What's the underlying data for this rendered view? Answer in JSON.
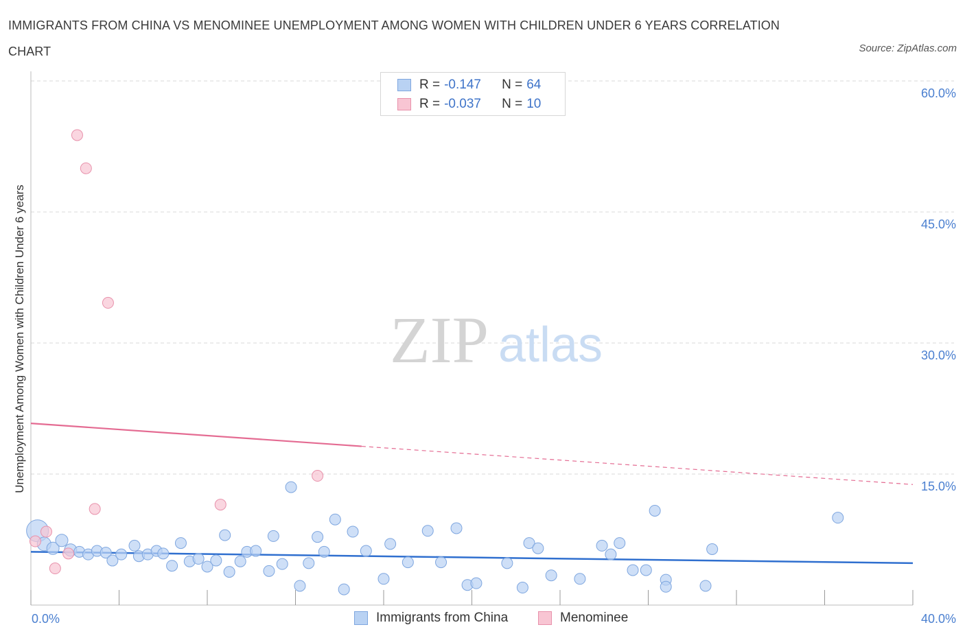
{
  "title": "IMMIGRANTS FROM CHINA VS MENOMINEE UNEMPLOYMENT AMONG WOMEN WITH CHILDREN UNDER 6 YEARS CORRELATION CHART",
  "source": "Source: ZipAtlas.com",
  "watermark": {
    "zip": "ZIP",
    "atlas": "atlas"
  },
  "legend": {
    "china": {
      "r_label": "R =",
      "r_value": "-0.147",
      "n_label": "N =",
      "n_value": "64"
    },
    "menominee": {
      "r_label": "R =",
      "r_value": "-0.037",
      "n_label": "N =",
      "n_value": "10"
    }
  },
  "bottom_legend": {
    "china": "Immigrants from China",
    "menominee": "Menominee"
  },
  "colors": {
    "china_fill": "#b9d2f3",
    "china_stroke": "#7ea6df",
    "china_line": "#2f6fcf",
    "menominee_fill": "#f8c5d3",
    "menominee_stroke": "#e891ab",
    "menominee_line": "#e46b92",
    "grid": "#d9d9d9",
    "tick_text": "#4a7fd0"
  },
  "chart_data": {
    "type": "scatter",
    "title": "IMMIGRANTS FROM CHINA VS MENOMINEE UNEMPLOYMENT AMONG WOMEN WITH CHILDREN UNDER 6 YEARS CORRELATION CHART",
    "xlabel": "",
    "ylabel": "Unemployment Among Women with Children Under 6 years",
    "xlim": [
      0,
      40
    ],
    "ylim": [
      0,
      60
    ],
    "x_tick_labels": {
      "min": "0.0%",
      "max": "40.0%"
    },
    "y_ticks": [
      {
        "value": 15,
        "label": "15.0%"
      },
      {
        "value": 30,
        "label": "30.0%"
      },
      {
        "value": 45,
        "label": "45.0%"
      },
      {
        "value": 60,
        "label": "60.0%"
      }
    ],
    "x_tick_marks": [
      0,
      4,
      8,
      12,
      16,
      20,
      24,
      28,
      32,
      36,
      40
    ],
    "grid": true,
    "legend_position": "top-center",
    "series": [
      {
        "name": "Immigrants from China",
        "r": -0.147,
        "n": 64,
        "trend": {
          "x0": 0,
          "y0": 6.1,
          "x1": 40,
          "y1": 4.8,
          "style": "solid"
        },
        "points": [
          [
            0.3,
            8.5,
            16
          ],
          [
            0.6,
            7.0,
            10
          ],
          [
            1.0,
            6.5,
            9
          ],
          [
            1.4,
            7.4,
            9
          ],
          [
            1.8,
            6.3,
            9
          ],
          [
            2.2,
            6.1,
            8
          ],
          [
            2.6,
            5.8,
            8
          ],
          [
            3.0,
            6.2,
            8
          ],
          [
            3.4,
            6.0,
            8
          ],
          [
            3.7,
            5.1,
            8
          ],
          [
            4.1,
            5.8,
            8
          ],
          [
            4.7,
            6.8,
            8
          ],
          [
            4.9,
            5.6,
            8
          ],
          [
            5.3,
            5.8,
            8
          ],
          [
            5.7,
            6.2,
            8
          ],
          [
            6.0,
            5.9,
            8
          ],
          [
            6.4,
            4.5,
            8
          ],
          [
            6.8,
            7.1,
            8
          ],
          [
            7.2,
            5.0,
            8
          ],
          [
            7.6,
            5.3,
            8
          ],
          [
            8.0,
            4.4,
            8
          ],
          [
            8.4,
            5.1,
            8
          ],
          [
            8.8,
            8.0,
            8
          ],
          [
            9.0,
            3.8,
            8
          ],
          [
            9.5,
            5.0,
            8
          ],
          [
            9.8,
            6.1,
            8
          ],
          [
            10.2,
            6.2,
            8
          ],
          [
            10.8,
            3.9,
            8
          ],
          [
            11.0,
            7.9,
            8
          ],
          [
            11.4,
            4.7,
            8
          ],
          [
            11.8,
            13.5,
            8
          ],
          [
            12.2,
            2.2,
            8
          ],
          [
            12.6,
            4.8,
            8
          ],
          [
            13.0,
            7.8,
            8
          ],
          [
            13.3,
            6.1,
            8
          ],
          [
            13.8,
            9.8,
            8
          ],
          [
            14.2,
            1.8,
            8
          ],
          [
            14.6,
            8.4,
            8
          ],
          [
            15.2,
            6.2,
            8
          ],
          [
            16.0,
            3.0,
            8
          ],
          [
            16.3,
            7.0,
            8
          ],
          [
            17.1,
            4.9,
            8
          ],
          [
            18.0,
            8.5,
            8
          ],
          [
            18.6,
            4.9,
            8
          ],
          [
            19.3,
            8.8,
            8
          ],
          [
            19.8,
            2.3,
            8
          ],
          [
            20.2,
            2.5,
            8
          ],
          [
            21.6,
            4.8,
            8
          ],
          [
            22.3,
            2.0,
            8
          ],
          [
            22.6,
            7.1,
            8
          ],
          [
            23.0,
            6.5,
            8
          ],
          [
            23.6,
            3.4,
            8
          ],
          [
            24.9,
            3.0,
            8
          ],
          [
            25.9,
            6.8,
            8
          ],
          [
            26.3,
            5.8,
            8
          ],
          [
            26.7,
            7.1,
            8
          ],
          [
            27.3,
            4.0,
            8
          ],
          [
            27.9,
            4.0,
            8
          ],
          [
            28.3,
            10.8,
            8
          ],
          [
            28.8,
            2.9,
            8
          ],
          [
            28.8,
            2.1,
            8
          ],
          [
            30.6,
            2.2,
            8
          ],
          [
            30.9,
            6.4,
            8
          ],
          [
            36.6,
            10.0,
            8
          ]
        ]
      },
      {
        "name": "Menominee",
        "r": -0.037,
        "n": 10,
        "trend": {
          "x0": 0,
          "y0": 20.8,
          "x1": 40,
          "y1": 13.8,
          "solid_until_x": 15
        },
        "points": [
          [
            0.2,
            7.3,
            8
          ],
          [
            0.7,
            8.4,
            8
          ],
          [
            1.1,
            4.2,
            8
          ],
          [
            1.7,
            5.9,
            8
          ],
          [
            2.1,
            53.8,
            8
          ],
          [
            2.5,
            50.0,
            8
          ],
          [
            2.9,
            11.0,
            8
          ],
          [
            3.5,
            34.6,
            8
          ],
          [
            8.6,
            11.5,
            8
          ],
          [
            13.0,
            14.8,
            8
          ]
        ]
      }
    ]
  }
}
